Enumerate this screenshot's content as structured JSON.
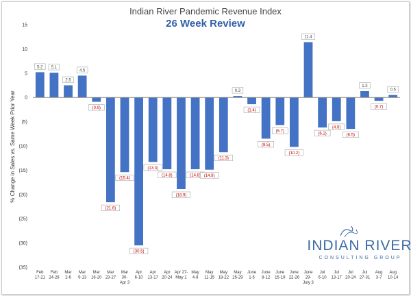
{
  "chart_data": {
    "type": "bar",
    "title": "Indian River Pandemic Revenue Index",
    "subtitle": "26 Week Review",
    "ylabel": "% Change in Sales vs. Same Week Prior Year",
    "xlabel": "",
    "ylim": [
      -35,
      15
    ],
    "yticks": [
      15,
      10,
      5,
      0,
      -5,
      -10,
      -15,
      -20,
      -25,
      -30,
      -35
    ],
    "ytick_labels": [
      "15",
      "10",
      "5",
      "0",
      "(5)",
      "(10)",
      "(15)",
      "(20)",
      "(25)",
      "(30)",
      "(35)"
    ],
    "grid": false,
    "legend": "none",
    "categories": [
      [
        "Feb",
        "17-21"
      ],
      [
        "Feb",
        "24-28"
      ],
      [
        "Mar",
        "2-6"
      ],
      [
        "Mar",
        "9-13"
      ],
      [
        "Mar",
        "16-20"
      ],
      [
        "Mar",
        "23-27"
      ],
      [
        "Mar",
        "30-",
        "Apr 3"
      ],
      [
        "Apr",
        "6-10"
      ],
      [
        "Apr",
        "13-17"
      ],
      [
        "Apr",
        "20-24"
      ],
      [
        "Apr 27-",
        "May 1"
      ],
      [
        "May",
        "4-8"
      ],
      [
        "May",
        "11-15"
      ],
      [
        "May",
        "18-22"
      ],
      [
        "May",
        "25-29"
      ],
      [
        "June",
        "1-5"
      ],
      [
        "June",
        "8-12"
      ],
      [
        "June",
        "15-19"
      ],
      [
        "June",
        "22-26"
      ],
      [
        "June",
        "29-",
        "July 3"
      ],
      [
        "Jul",
        "6-10"
      ],
      [
        "Jul",
        "13-17"
      ],
      [
        "Jul",
        "20-24"
      ],
      [
        "Jul",
        "27-31"
      ],
      [
        "Aug",
        "3-7"
      ],
      [
        "Aug",
        "10-14"
      ]
    ],
    "values": [
      5.2,
      5.1,
      2.5,
      4.5,
      -0.9,
      -21.6,
      -15.4,
      -30.5,
      -13.3,
      -14.8,
      -18.9,
      -14.8,
      -14.9,
      -11.3,
      0.3,
      -1.4,
      -8.5,
      -5.7,
      -10.2,
      11.4,
      -6.2,
      -4.9,
      -6.5,
      1.3,
      -0.7,
      0.5
    ],
    "value_labels": [
      "5.2",
      "5.1",
      "2.5",
      "4.5",
      "(0.9)",
      "(21.6)",
      "(15.4)",
      "(30.5)",
      "(13.3)",
      "(14.8)",
      "(18.9)",
      "(14.8)",
      "(14.9)",
      "(11.3)",
      "0.3",
      "(1.4)",
      "(8.5)",
      "(5.7)",
      "(10.2)",
      "11.4",
      "(6.2)",
      "(4.9)",
      "(6.5)",
      "1.3",
      "(0.7)",
      "0.5"
    ]
  },
  "logo": {
    "main": "INDIAN RIVER",
    "sub": "CONSULTING GROUP"
  },
  "colors": {
    "bar": "#4472c4",
    "negative_label": "#c00000",
    "positive_label": "#404040",
    "axis": "#888888",
    "logo": "#3a6aa6"
  }
}
